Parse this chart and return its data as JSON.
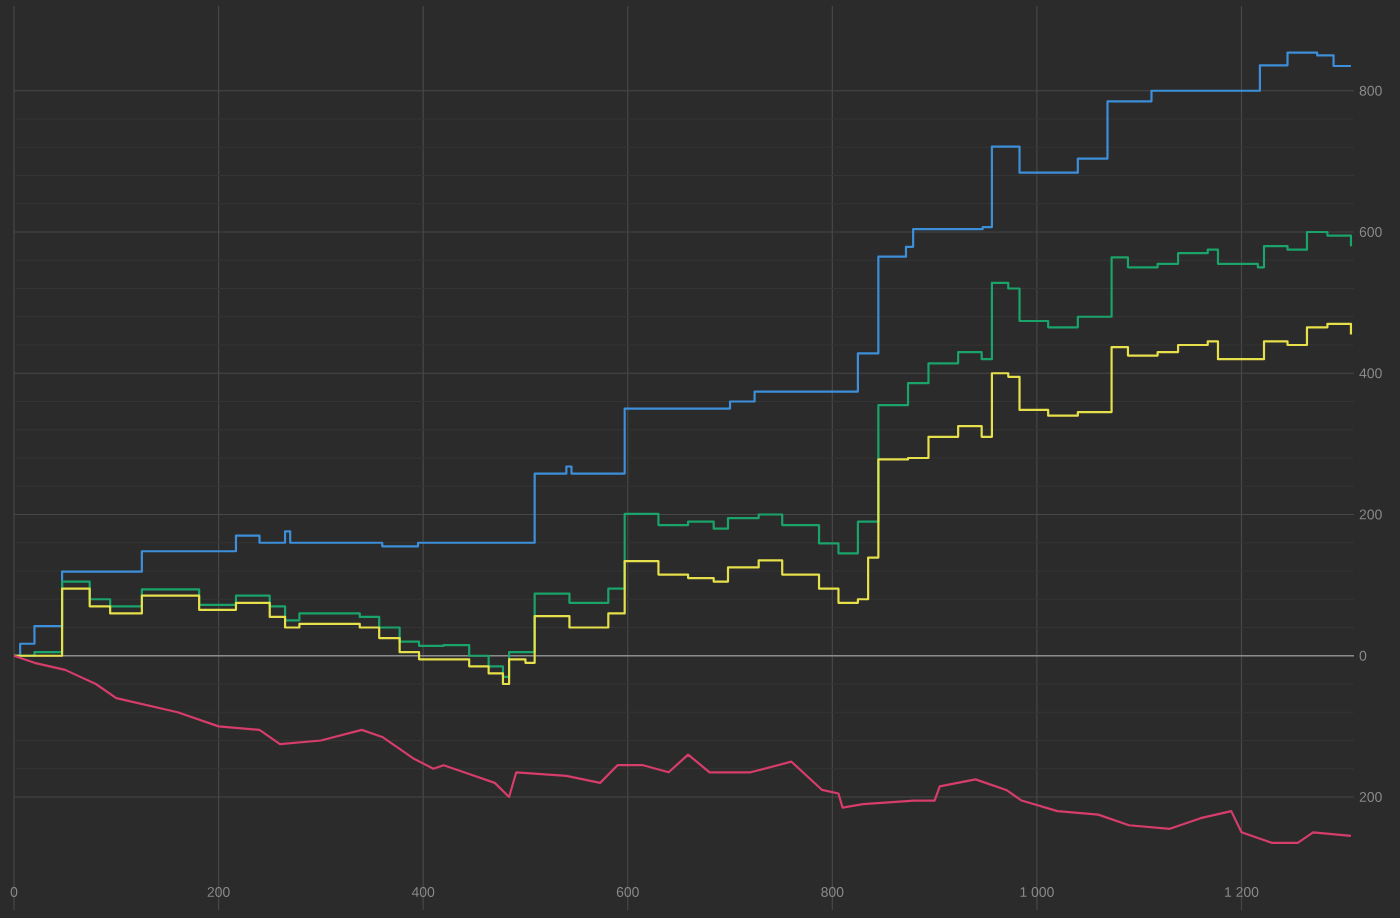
{
  "chart_data": {
    "type": "step",
    "xlim": [
      0,
      1310
    ],
    "ylim": [
      -360,
      920
    ],
    "xticks": [
      0,
      200,
      400,
      600,
      800,
      {
        "value": 1000,
        "label": "1 000"
      },
      {
        "value": 1200,
        "label": "1 200"
      }
    ],
    "yticks": [
      {
        "value": -200,
        "label": "200"
      },
      0,
      200,
      400,
      600,
      800
    ],
    "grid": true,
    "ref_lines": [
      {
        "axis": "y",
        "value": 0,
        "color": "#8c8c8c"
      }
    ],
    "series": [
      {
        "color": "#3d8fd9",
        "x": [
          0,
          6,
          20,
          47,
          125,
          217,
          240,
          250,
          265,
          270,
          280,
          360,
          395,
          505,
          509,
          540,
          545,
          597,
          700,
          724,
          825,
          845,
          872,
          879,
          947,
          956,
          983,
          1040,
          1069,
          1112,
          1218,
          1245,
          1274,
          1290,
          1307
        ],
        "values": [
          0,
          17,
          42,
          119,
          148,
          170,
          160,
          160,
          176,
          160,
          160,
          155,
          160,
          160,
          258,
          268,
          258,
          350,
          360,
          374,
          428,
          565,
          579,
          604,
          607,
          721,
          684,
          704,
          785,
          800,
          836,
          854,
          850,
          835,
          835
        ]
      },
      {
        "color": "#1aa36b",
        "x": [
          0,
          20,
          47,
          74,
          94,
          125,
          181,
          217,
          250,
          265,
          279,
          338,
          357,
          377,
          396,
          420,
          445,
          464,
          478,
          484,
          509,
          543,
          572,
          581,
          597,
          630,
          659,
          684,
          698,
          728,
          751,
          787,
          806,
          825,
          845,
          874,
          894,
          923,
          946,
          956,
          972,
          983,
          1011,
          1040,
          1069,
          1073,
          1089,
          1118,
          1138,
          1167,
          1177,
          1216,
          1222,
          1245,
          1264,
          1284,
          1307
        ],
        "values": [
          0,
          5,
          105,
          80,
          70,
          94,
          72,
          85,
          70,
          50,
          60,
          55,
          40,
          20,
          14,
          15,
          0,
          -15,
          -30,
          5,
          88,
          75,
          75,
          95,
          201,
          185,
          190,
          180,
          195,
          200,
          185,
          159,
          145,
          190,
          355,
          386,
          414,
          430,
          420,
          528,
          520,
          474,
          465,
          480,
          480,
          564,
          550,
          555,
          570,
          575,
          555,
          550,
          580,
          575,
          600,
          595,
          580
        ]
      },
      {
        "color": "#e6e04a",
        "x": [
          0,
          47,
          74,
          94,
          125,
          181,
          217,
          250,
          265,
          279,
          338,
          357,
          377,
          396,
          420,
          445,
          464,
          478,
          484,
          500,
          509,
          543,
          572,
          581,
          597,
          630,
          659,
          684,
          698,
          728,
          751,
          787,
          806,
          825,
          835,
          845,
          874,
          894,
          923,
          946,
          956,
          972,
          983,
          1011,
          1040,
          1069,
          1073,
          1089,
          1118,
          1138,
          1167,
          1177,
          1216,
          1222,
          1245,
          1264,
          1284,
          1307
        ],
        "values": [
          0,
          95,
          70,
          60,
          85,
          65,
          75,
          55,
          40,
          45,
          40,
          25,
          5,
          -5,
          -5,
          -15,
          -25,
          -40,
          -5,
          -10,
          56,
          40,
          40,
          60,
          134,
          115,
          110,
          105,
          125,
          135,
          115,
          95,
          75,
          80,
          139,
          278,
          280,
          310,
          325,
          310,
          400,
          395,
          348,
          340,
          345,
          345,
          437,
          425,
          430,
          440,
          445,
          420,
          420,
          445,
          440,
          465,
          470,
          455
        ]
      },
      {
        "color": "#d63d6b",
        "type": "line",
        "x": [
          0,
          20,
          50,
          80,
          100,
          130,
          160,
          200,
          240,
          260,
          300,
          340,
          360,
          390,
          410,
          420,
          440,
          470,
          484,
          491,
          540,
          573,
          590,
          615,
          640,
          659,
          680,
          720,
          760,
          790,
          806,
          810,
          830,
          880,
          900,
          905,
          940,
          970,
          985,
          1020,
          1060,
          1090,
          1130,
          1160,
          1190,
          1200,
          1230,
          1255,
          1270,
          1307
        ],
        "values": [
          0,
          -10,
          -20,
          -40,
          -60,
          -70,
          -80,
          -100,
          -105,
          -125,
          -120,
          -105,
          -115,
          -145,
          -160,
          -155,
          -165,
          -180,
          -200,
          -165,
          -170,
          -180,
          -155,
          -155,
          -165,
          -140,
          -165,
          -165,
          -150,
          -190,
          -195,
          -215,
          -210,
          -205,
          -205,
          -185,
          -175,
          -190,
          -205,
          -220,
          -225,
          -240,
          -245,
          -230,
          -220,
          -250,
          -265,
          -265,
          -250,
          -255
        ]
      }
    ]
  }
}
